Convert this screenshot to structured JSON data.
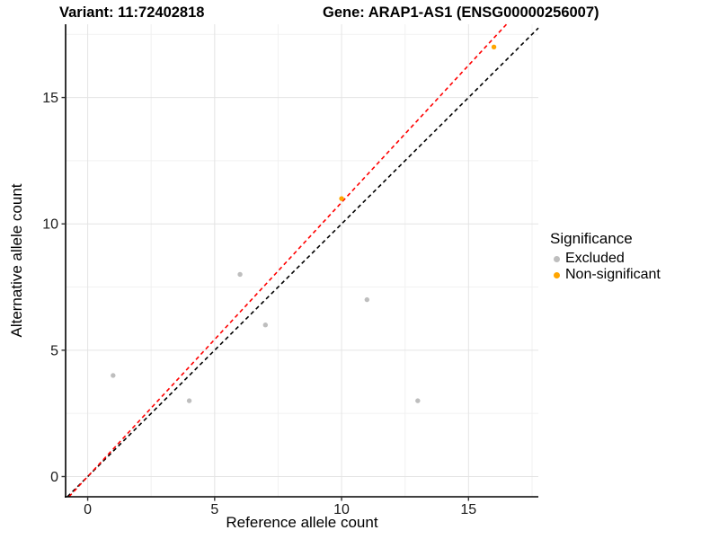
{
  "titles": {
    "variant": "Variant: 11:72402818",
    "gene": "Gene: ARAP1-AS1 (ENSG00000256007)"
  },
  "chart_data": {
    "type": "scatter",
    "title": "Variant: 11:72402818   Gene: ARAP1-AS1 (ENSG00000256007)",
    "xlabel": "Reference allele count",
    "ylabel": "Alternative allele count",
    "xlim": [
      -0.87,
      17.75
    ],
    "ylim": [
      -0.8,
      17.9
    ],
    "x_ticks": [
      0,
      5,
      10,
      15
    ],
    "y_ticks": [
      0,
      5,
      10,
      15
    ],
    "x_minor_ticks": [
      2.5,
      7.5,
      12.5,
      17.5
    ],
    "y_minor_ticks": [
      2.5,
      7.5,
      12.5,
      17.5
    ],
    "grid": true,
    "legend_position": "right",
    "series": [
      {
        "name": "Excluded",
        "color": "#BEBEBE",
        "points": [
          [
            1,
            4
          ],
          [
            4,
            3
          ],
          [
            6,
            8
          ],
          [
            7,
            6
          ],
          [
            11,
            7
          ],
          [
            13,
            3
          ]
        ]
      },
      {
        "name": "Non-significant",
        "color": "#FFA500",
        "points": [
          [
            10,
            11
          ],
          [
            16,
            17
          ]
        ]
      }
    ],
    "lines": [
      {
        "name": "identity-line",
        "color": "#000000",
        "style": "dashed",
        "slope": 1.0,
        "intercept": 0
      },
      {
        "name": "fit-line",
        "color": "#FF0000",
        "style": "dashed",
        "slope": 1.085,
        "intercept": 0
      }
    ]
  },
  "legend": {
    "title": "Significance",
    "items": [
      {
        "label": "Excluded",
        "color": "#BEBEBE"
      },
      {
        "label": "Non-significant",
        "color": "#FFA500"
      }
    ]
  },
  "colors": {
    "grid_major": "#E4E4E4",
    "grid_minor": "#F1F1F1",
    "axis_line": "#000000",
    "tick_text": "#1A1A1A"
  }
}
